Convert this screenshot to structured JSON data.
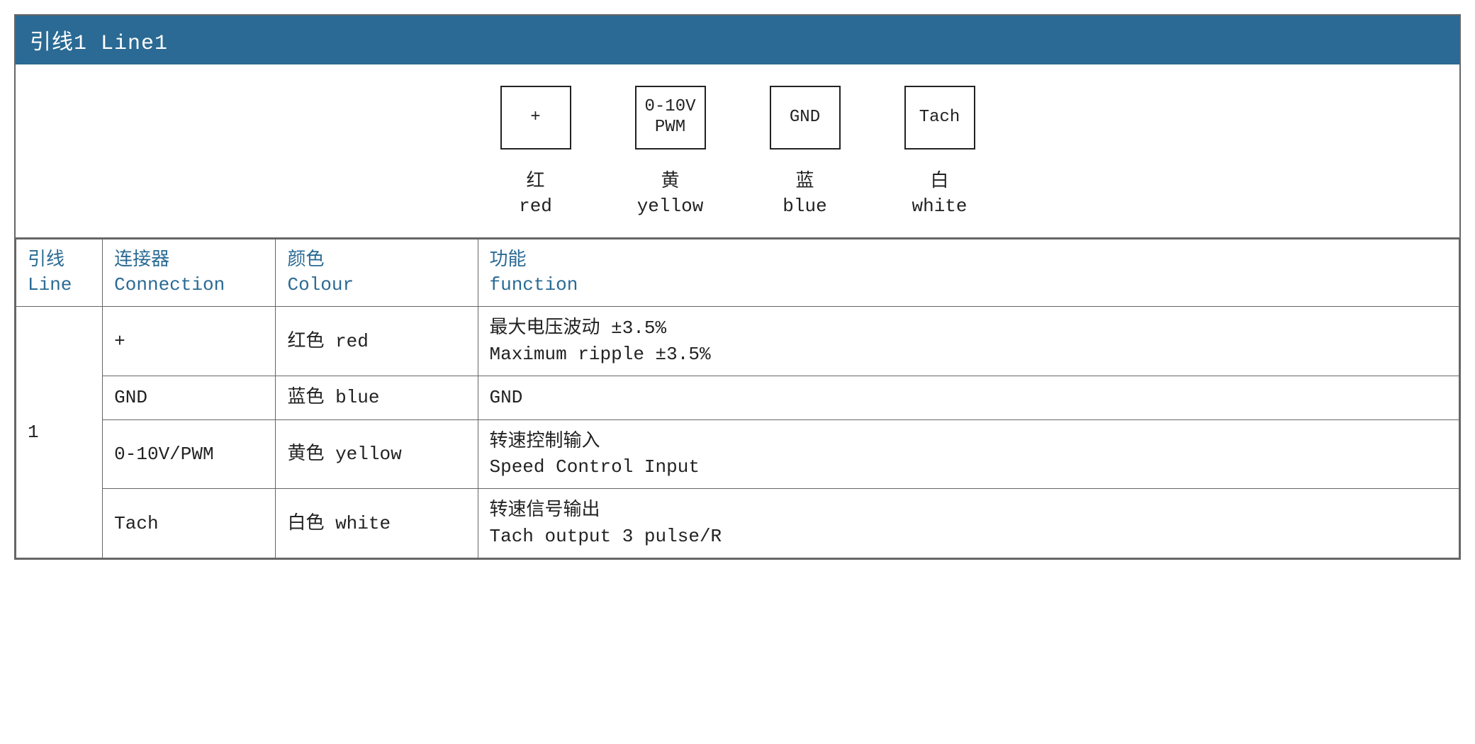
{
  "header": {
    "title": "引线1 Line1"
  },
  "pins": [
    {
      "box_l1": "+",
      "box_l2": "",
      "label_cn": "红",
      "label_en": "red"
    },
    {
      "box_l1": "0-10V",
      "box_l2": "PWM",
      "label_cn": "黄",
      "label_en": "yellow"
    },
    {
      "box_l1": "GND",
      "box_l2": "",
      "label_cn": "蓝",
      "label_en": "blue"
    },
    {
      "box_l1": "Tach",
      "box_l2": "",
      "label_cn": "白",
      "label_en": "white"
    }
  ],
  "table": {
    "headers": {
      "line_cn": "引线",
      "line_en": "Line",
      "conn_cn": "连接器",
      "conn_en": "Connection",
      "colour_cn": "颜色",
      "colour_en": "Colour",
      "func_cn": "功能",
      "func_en": "function"
    },
    "line_group": "1",
    "rows": [
      {
        "conn": "+",
        "colour": "红色 red",
        "func_cn": "最大电压波动 ±3.5%",
        "func_en": "Maximum ripple ±3.5%"
      },
      {
        "conn": "GND",
        "colour": "蓝色 blue",
        "func_cn": "",
        "func_en": "GND"
      },
      {
        "conn": "0-10V/PWM",
        "colour": "黄色 yellow",
        "func_cn": "转速控制输入",
        "func_en": "Speed Control Input"
      },
      {
        "conn": "Tach",
        "colour": "白色 white",
        "func_cn": "转速信号输出",
        "func_en": "Tach output 3 pulse/R"
      }
    ]
  },
  "style": {
    "header_bg": "#2a6a94",
    "header_fg": "#ffffff",
    "border_color": "#666666",
    "th_color": "#2a6a94",
    "body_font": "SimSun / Courier",
    "font_size_pt": 20
  }
}
